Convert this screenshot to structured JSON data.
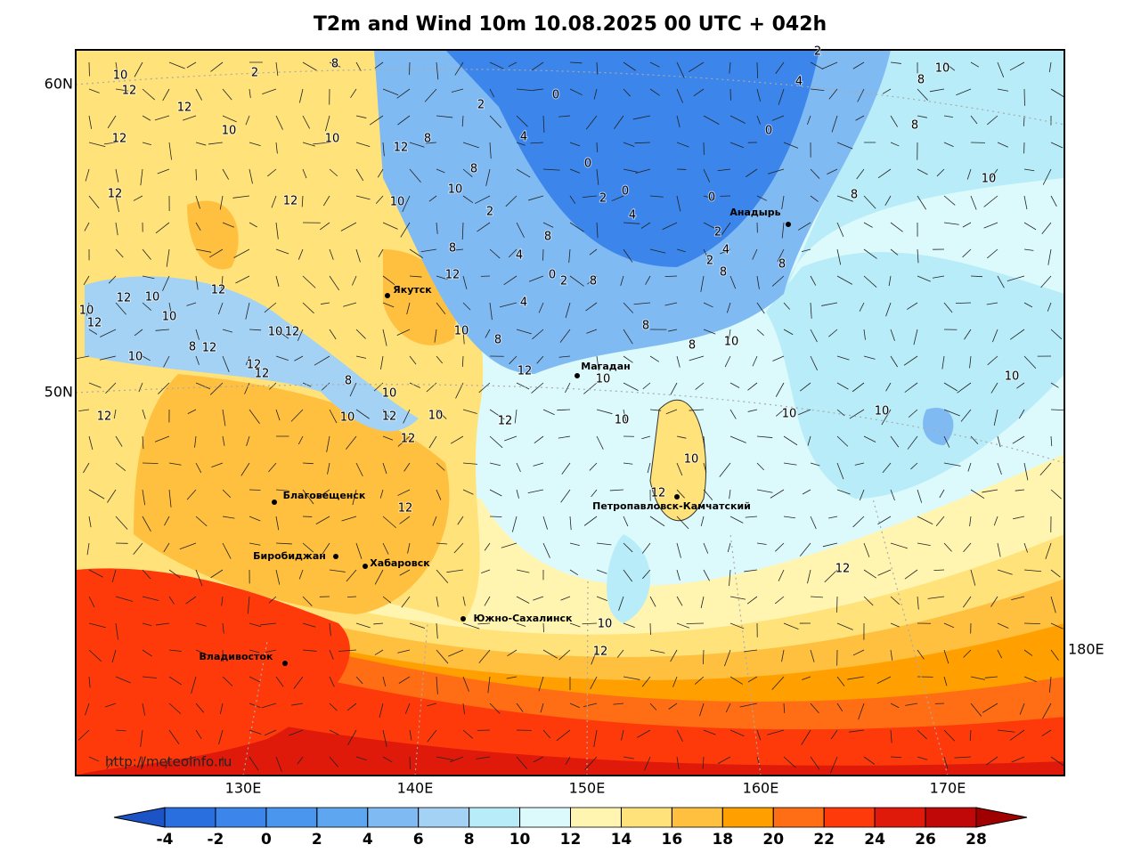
{
  "title": "T2m and Wind 10m 10.08.2025 00 UTC + 042h",
  "lat_labels": [
    "60N",
    "50N"
  ],
  "lon_labels": [
    "130E",
    "140E",
    "150E",
    "160E",
    "170E",
    "180E"
  ],
  "cities": [
    "Якутск",
    "Магадан",
    "Анадырь",
    "Благовещенск",
    "Биробиджан",
    "Хабаровск",
    "Петропавловск-Камчатский",
    "Южно-Сахалинск",
    "Владивосток"
  ],
  "contour_labels": [
    10,
    12,
    12,
    12,
    10,
    10,
    12,
    8,
    2,
    8,
    2,
    0,
    4,
    0,
    2,
    0,
    4,
    0,
    0,
    4,
    8,
    10,
    8,
    10,
    8,
    8,
    2,
    4,
    2,
    8,
    10,
    8,
    8,
    12,
    10,
    12,
    10,
    10,
    10,
    10,
    10,
    12,
    12,
    10,
    12,
    12,
    12,
    10,
    10,
    2,
    8,
    8,
    8,
    4,
    12,
    0,
    2,
    8,
    4,
    10,
    8,
    12,
    10,
    12,
    10,
    12,
    10,
    10,
    12,
    8,
    12,
    10,
    12,
    12,
    8,
    10,
    12,
    10,
    10,
    12,
    12,
    12,
    2
  ],
  "watermark": "http://meteoinfo.ru",
  "colorbar": {
    "ticks": [
      -4,
      -2,
      0,
      2,
      4,
      6,
      8,
      10,
      12,
      14,
      16,
      18,
      20,
      22,
      24,
      26,
      28
    ],
    "colors": [
      "#1c54c8",
      "#2a6fe0",
      "#3c85ea",
      "#4a96ee",
      "#5ea6f0",
      "#80baf3",
      "#a3d2f5",
      "#b8ecf8",
      "#dcfafc",
      "#fff5b0",
      "#ffe27a",
      "#ffc040",
      "#ffa000",
      "#ff6e14",
      "#ff3a0a",
      "#e01a0a",
      "#c00808",
      "#a00000"
    ]
  }
}
